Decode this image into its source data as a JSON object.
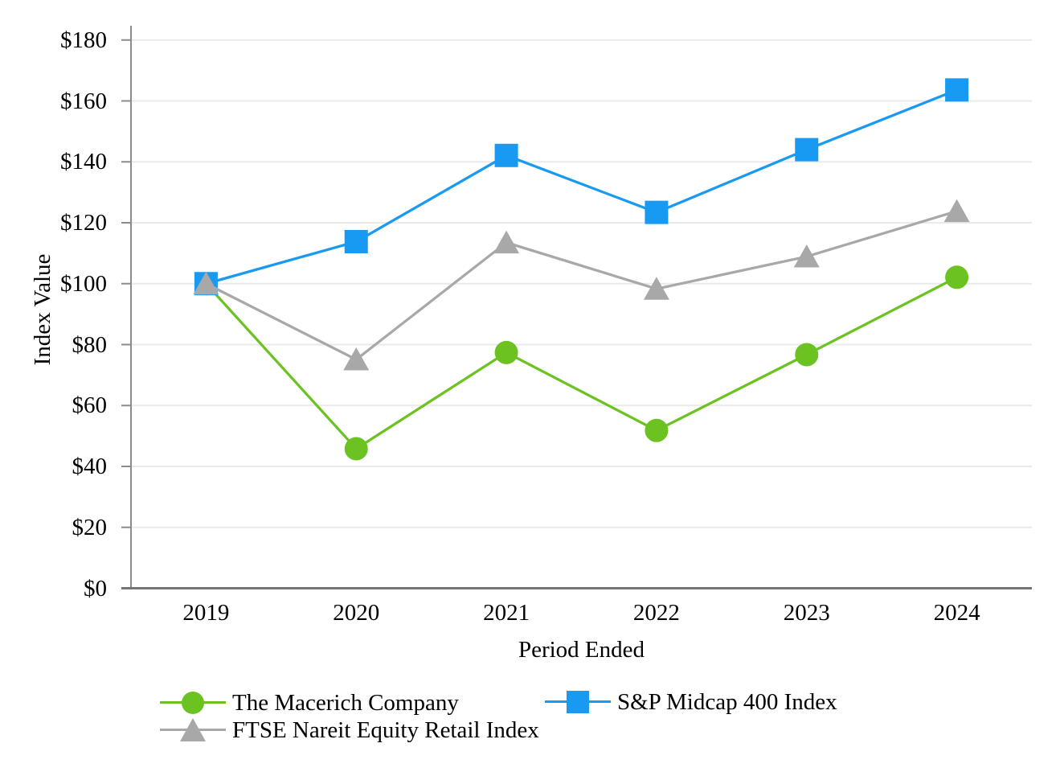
{
  "chart_data": {
    "type": "line",
    "title": "",
    "xlabel": "Period Ended",
    "ylabel": "Index Value",
    "categories": [
      "2019",
      "2020",
      "2021",
      "2022",
      "2023",
      "2024"
    ],
    "series": [
      {
        "name": "The Macerich Company",
        "marker": "circle",
        "color": "#6CC221",
        "values": [
          100,
          45.8,
          77.4,
          51.8,
          76.7,
          102.1
        ]
      },
      {
        "name": "S&P Midcap 400 Index",
        "marker": "square",
        "color": "#1899F2",
        "values": [
          100,
          113.8,
          142.1,
          123.4,
          144.0,
          163.6
        ]
      },
      {
        "name": "FTSE Nareit Equity Retail Index",
        "marker": "triangle",
        "color": "#A8A8A8",
        "values": [
          100,
          75.1,
          113.5,
          98.3,
          108.9,
          123.8
        ]
      }
    ],
    "ylim": [
      0,
      180
    ],
    "ytick_step": 20,
    "ytick_labels": [
      "$0",
      "$20",
      "$40",
      "$60",
      "$80",
      "$100",
      "$120",
      "$140",
      "$160",
      "$180"
    ],
    "grid": "horizontal-light",
    "legend_position": "bottom",
    "legend_rows": [
      [
        "The Macerich Company",
        "S&P Midcap 400 Index"
      ],
      [
        "FTSE Nareit Equity Retail Index"
      ]
    ],
    "colors": {
      "grid": "#EAEAEA",
      "axis": "#8C8C8C",
      "baseline": "#757575",
      "text": "#000000",
      "background": "#FFFFFF"
    }
  }
}
